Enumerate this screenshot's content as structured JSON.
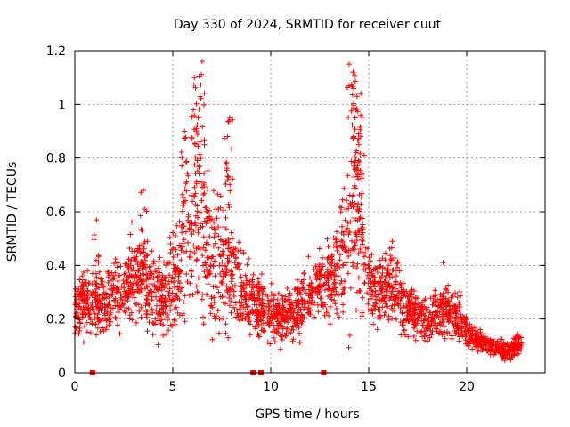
{
  "chart_data": {
    "type": "scatter",
    "title": "Day 330 of 2024, SRMTID for receiver cuut",
    "xlabel": "GPS time / hours",
    "ylabel": "SRMTID / TECUs",
    "xlim": [
      0,
      24
    ],
    "ylim": [
      0,
      1.2
    ],
    "x_ticks": [
      0,
      5,
      10,
      15,
      20
    ],
    "y_ticks": [
      0,
      0.2,
      0.4,
      0.6,
      0.8,
      1,
      1.2
    ],
    "x_tick_labels": [
      "0",
      "5",
      "10",
      "15",
      "20"
    ],
    "y_tick_labels": [
      "0",
      "0.2",
      "0.4",
      "0.6",
      "0.8",
      "1",
      "1.2"
    ],
    "grid": true,
    "marker": "plus",
    "color": "#ff0000",
    "zero_markers_x": [
      0.9,
      9.1,
      9.5,
      12.7
    ],
    "envelope": {
      "x": [
        0.0,
        0.5,
        1.0,
        1.5,
        2.0,
        2.5,
        3.0,
        3.5,
        4.0,
        4.5,
        5.0,
        5.5,
        6.0,
        6.5,
        7.0,
        7.5,
        8.0,
        8.5,
        9.0,
        9.5,
        10.0,
        10.5,
        11.0,
        11.5,
        12.0,
        12.5,
        13.0,
        13.5,
        14.0,
        14.5,
        15.0,
        15.5,
        16.0,
        16.5,
        17.0,
        17.5,
        18.0,
        18.5,
        19.0,
        19.5,
        20.0,
        20.5,
        21.0,
        21.5,
        22.0,
        22.5,
        22.8
      ],
      "center": [
        0.22,
        0.28,
        0.25,
        0.27,
        0.3,
        0.32,
        0.35,
        0.36,
        0.3,
        0.28,
        0.34,
        0.48,
        0.58,
        0.55,
        0.45,
        0.42,
        0.4,
        0.3,
        0.28,
        0.24,
        0.22,
        0.2,
        0.22,
        0.24,
        0.3,
        0.32,
        0.34,
        0.4,
        0.55,
        0.55,
        0.35,
        0.3,
        0.32,
        0.28,
        0.24,
        0.22,
        0.2,
        0.21,
        0.22,
        0.21,
        0.16,
        0.12,
        0.11,
        0.09,
        0.08,
        0.1,
        0.11
      ],
      "spread": [
        0.08,
        0.1,
        0.09,
        0.1,
        0.11,
        0.12,
        0.14,
        0.14,
        0.12,
        0.11,
        0.16,
        0.22,
        0.28,
        0.28,
        0.22,
        0.2,
        0.18,
        0.12,
        0.1,
        0.08,
        0.08,
        0.07,
        0.08,
        0.08,
        0.1,
        0.1,
        0.12,
        0.16,
        0.25,
        0.24,
        0.12,
        0.1,
        0.12,
        0.1,
        0.08,
        0.07,
        0.07,
        0.07,
        0.08,
        0.07,
        0.05,
        0.04,
        0.03,
        0.03,
        0.03,
        0.03,
        0.03
      ]
    },
    "peaks": [
      {
        "x": 5.6,
        "y": 0.9
      },
      {
        "x": 6.1,
        "y": 1.1
      },
      {
        "x": 6.5,
        "y": 1.16
      },
      {
        "x": 6.3,
        "y": 0.95
      },
      {
        "x": 7.9,
        "y": 0.95
      },
      {
        "x": 7.8,
        "y": 0.88
      },
      {
        "x": 3.5,
        "y": 0.68
      },
      {
        "x": 1.1,
        "y": 0.57
      },
      {
        "x": 14.0,
        "y": 1.15
      },
      {
        "x": 14.2,
        "y": 1.12
      },
      {
        "x": 14.4,
        "y": 1.03
      },
      {
        "x": 14.6,
        "y": 1.04
      },
      {
        "x": 14.3,
        "y": 0.95
      },
      {
        "x": 14.5,
        "y": 0.85
      },
      {
        "x": 18.8,
        "y": 0.41
      },
      {
        "x": 16.2,
        "y": 0.49
      }
    ],
    "points_per_hour": 110
  }
}
